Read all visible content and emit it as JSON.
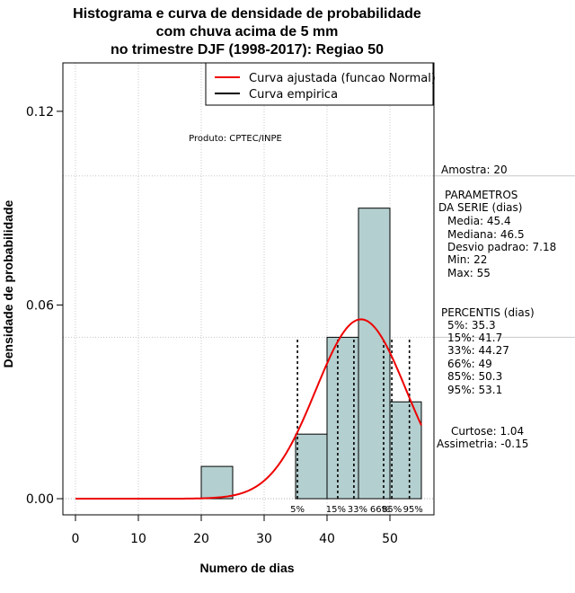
{
  "chart_data": {
    "type": "histogram",
    "title_lines": [
      "Histograma e curva de densidade de probabilidade",
      "com chuva acima de 5 mm",
      "no trimestre DJF (1998-2017): Regiao 50"
    ],
    "xlabel": "Numero de dias",
    "ylabel": "Densidade de probabilidade",
    "xlim": [
      -2,
      57
    ],
    "ylim": [
      -0.005,
      0.135
    ],
    "x_ticks": [
      0,
      10,
      20,
      30,
      40,
      50
    ],
    "y_ticks": [
      0.0,
      0.06,
      0.12
    ],
    "y_tick_labels": [
      "0.00",
      "0.06",
      "0.12"
    ],
    "bars": [
      {
        "x0": 20,
        "x1": 25,
        "density": 0.01
      },
      {
        "x0": 35,
        "x1": 40,
        "density": 0.02
      },
      {
        "x0": 40,
        "x1": 45,
        "density": 0.05
      },
      {
        "x0": 45,
        "x1": 50,
        "density": 0.09
      },
      {
        "x0": 50,
        "x1": 55,
        "density": 0.03
      }
    ],
    "bar_color": "#b4cfcf",
    "normal_fit": {
      "mean": 45.4,
      "sd": 7.18,
      "x_from": 0,
      "x_to": 55,
      "color": "#ee0000"
    },
    "percentile_lines": [
      {
        "label": "5%",
        "value": 35.3
      },
      {
        "label": "15%",
        "value": 41.7
      },
      {
        "label": "33%",
        "value": 44.27
      },
      {
        "label": "66%",
        "value": 49
      },
      {
        "label": "85%",
        "value": 50.3
      },
      {
        "label": "95%",
        "value": 53.1
      }
    ],
    "h_gridlines": [
      0.1,
      0.05
    ],
    "legend": [
      {
        "label": "Curva ajustada (funcao Normal)",
        "color": "#ee0000"
      },
      {
        "label": "Curva empirica",
        "color": "#000000"
      }
    ],
    "legend_position": "top-right",
    "annotation": "Produto: CPTEC/INPE"
  },
  "side_panel": {
    "amostra": "Amostra: 20",
    "parametros": [
      "PARAMETROS",
      "DA SERIE (dias)",
      "Media: 45.4",
      "Mediana: 46.5",
      "Desvio padrao: 7.18",
      "Min: 22",
      "Max: 55"
    ],
    "percentis": [
      "PERCENTIS (dias)",
      "5%: 35.3",
      "15%: 41.7",
      "33%: 44.27",
      "66%: 49",
      "85%: 50.3",
      "95%: 53.1"
    ],
    "curtose": "Curtose: 1.04",
    "assimetria": "Assimetria: -0.15"
  }
}
